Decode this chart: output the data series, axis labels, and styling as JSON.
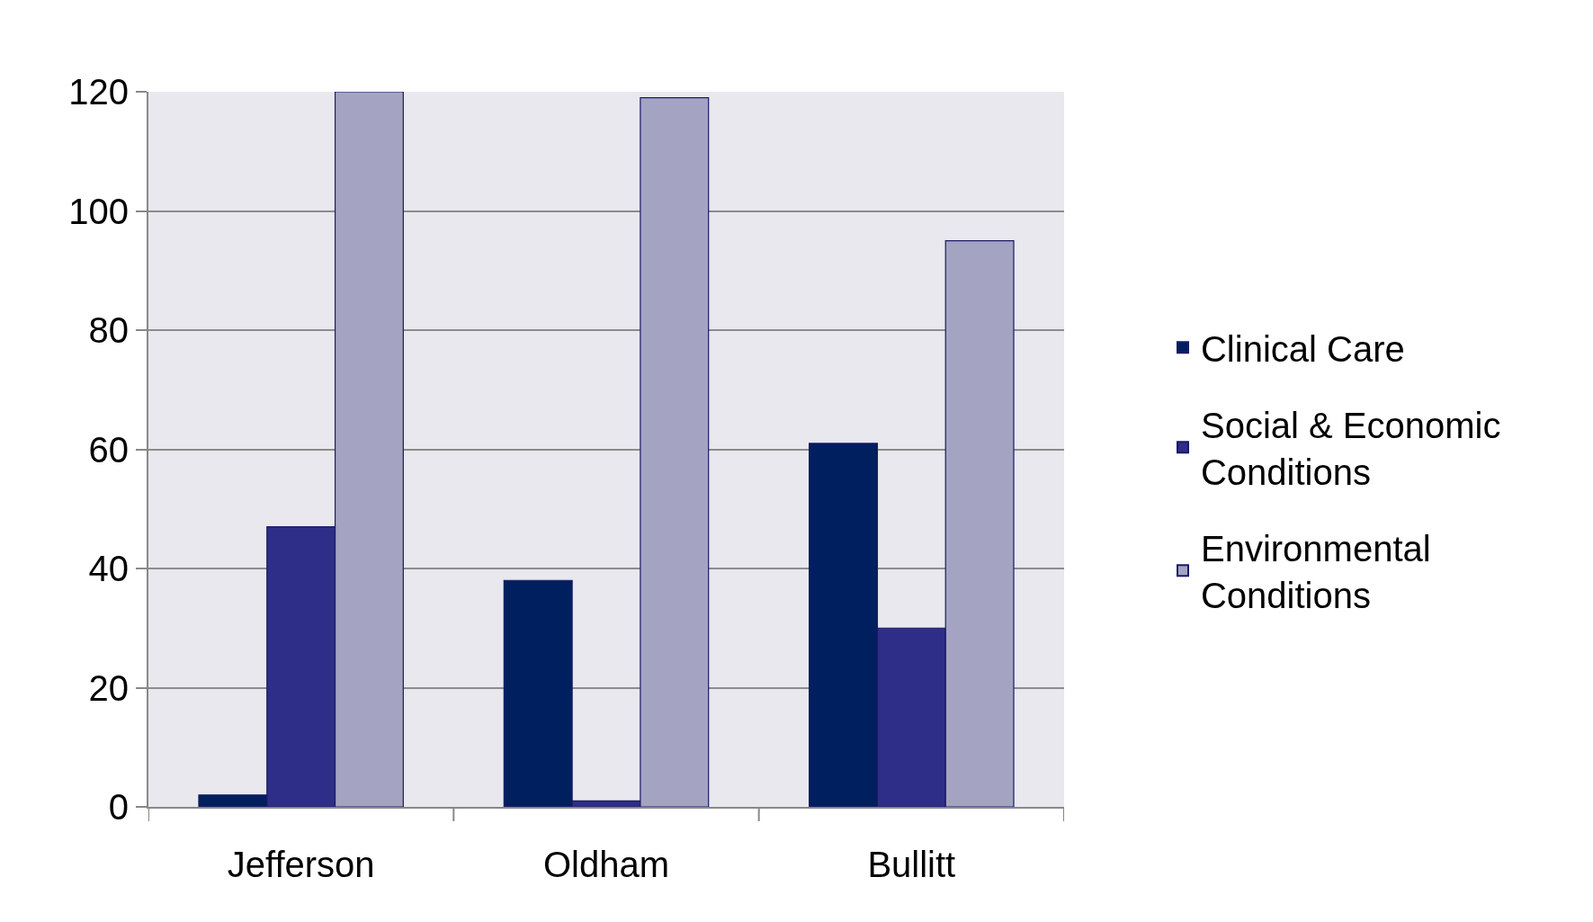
{
  "chart_data": {
    "type": "bar",
    "categories": [
      "Jefferson",
      "Oldham",
      "Bullitt"
    ],
    "series": [
      {
        "name": "Clinical Care",
        "color": "#001f5f",
        "values": [
          2,
          38,
          61
        ]
      },
      {
        "name": "Social & Economic Conditions",
        "color": "#2e2d88",
        "values": [
          47,
          1,
          30
        ]
      },
      {
        "name": "Environmental Conditions",
        "color": "#a4a4c2",
        "values": [
          120,
          119,
          95
        ]
      }
    ],
    "ylim": [
      0,
      120
    ],
    "yticks": [
      0,
      20,
      40,
      60,
      80,
      100,
      120
    ],
    "grid": "y",
    "legend": "right"
  }
}
